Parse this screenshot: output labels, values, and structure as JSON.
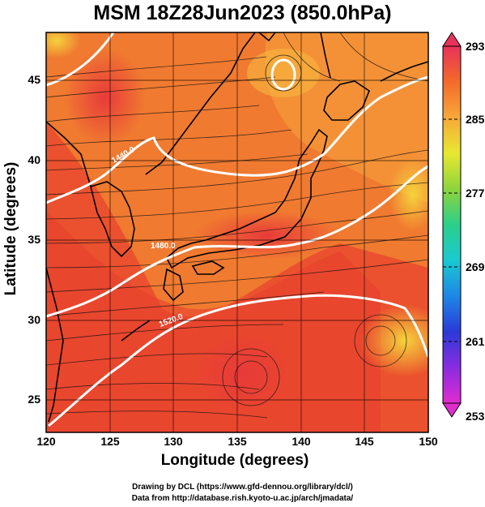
{
  "title": "MSM 18Z28Jun2023 (850.0hPa)",
  "map": {
    "xlabel": "Longitude (degrees)",
    "ylabel": "Latitude  (degrees)",
    "x_ticks": [
      "120",
      "125",
      "130",
      "135",
      "140",
      "145",
      "150"
    ],
    "y_ticks": [
      "45",
      "40",
      "35",
      "30",
      "25"
    ],
    "lon_range": [
      120,
      150
    ],
    "lat_range": [
      22.5,
      47.5
    ],
    "contour_labels": [
      "1440.0",
      "1480.0",
      "1520.0"
    ]
  },
  "colorbar": {
    "ticks": [
      "293",
      "285",
      "277",
      "269",
      "261",
      "253"
    ],
    "colors": [
      "#e8325a",
      "#f46a2a",
      "#f7a83a",
      "#e8e830",
      "#8ed43c",
      "#2ccf8a",
      "#1ac9d0",
      "#1f86e6",
      "#2a3ad8",
      "#8a2ce0",
      "#e02ccf"
    ]
  },
  "credits": {
    "line1": "Drawing by DCL (https://www.gfd-dennou.org/library/dcl/)",
    "line2": "Data from http://database.rish.kyoto-u.ac.jp/arch/jmadata/"
  }
}
